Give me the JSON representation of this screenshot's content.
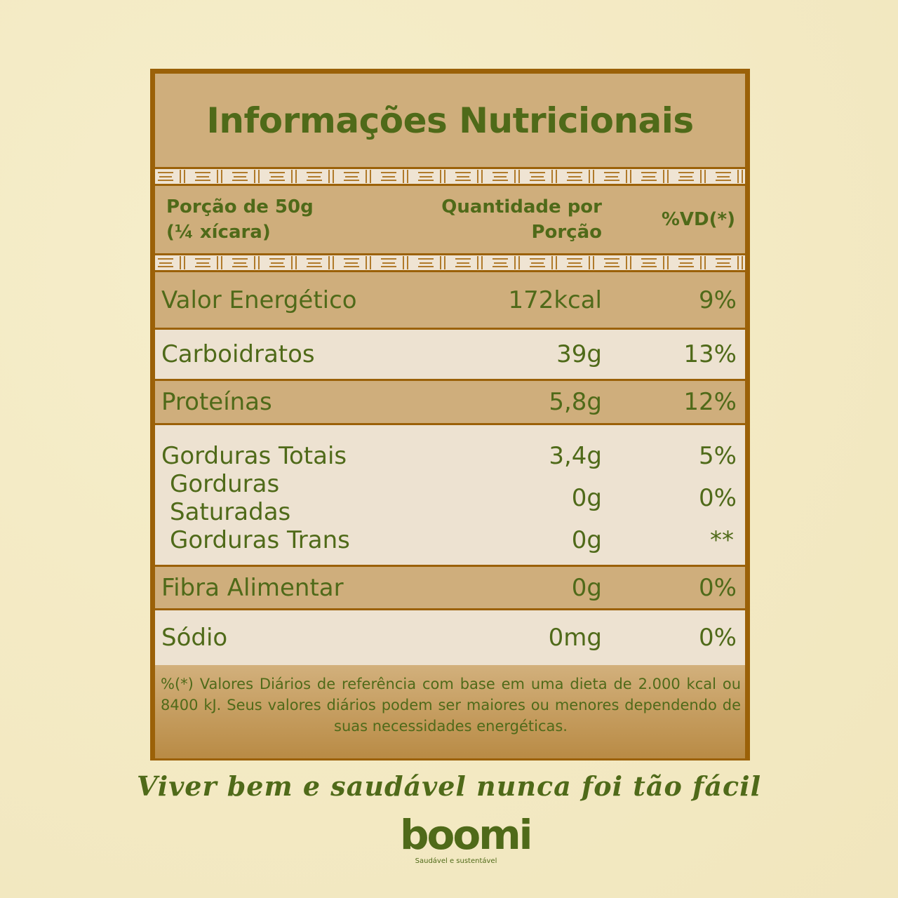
{
  "title": "Informações Nutricionais",
  "header": {
    "portion_line1": "Porção de 50g",
    "portion_line2": "(¼ xícara)",
    "qty_line1": "Quantidade por",
    "qty_line2": "Porção",
    "vd": "%VD(*)"
  },
  "rows": [
    {
      "label": "Valor Energético",
      "qty": "172kcal",
      "vd": "9%"
    },
    {
      "label": "Carboidratos",
      "qty": "39g",
      "vd": "13%"
    },
    {
      "label": "Proteínas",
      "qty": "5,8g",
      "vd": "12%"
    },
    {
      "label": "Gorduras Totais",
      "qty": "3,4g",
      "vd": "5%"
    },
    {
      "label": "Gorduras Saturadas",
      "qty": "0g",
      "vd": "0%"
    },
    {
      "label": "Gorduras Trans",
      "qty": "0g",
      "vd": "**"
    },
    {
      "label": "Fibra Alimentar",
      "qty": "0g",
      "vd": "0%"
    },
    {
      "label": "Sódio",
      "qty": "0mg",
      "vd": "0%"
    }
  ],
  "footnote": "%(*) Valores Diários de referência com base em uma dieta de 2.000 kcal ou 8400 kJ. Seus valores diários podem ser maiores ou menores dependendo de suas necessidades energéticas.",
  "tagline": "Viver bem e saudável nunca foi tão fácil",
  "logo": {
    "name": "boomi",
    "slogan": "Saudável e sustentável"
  },
  "colors": {
    "text": "#4f6a19",
    "border": "#9b6108",
    "tan": "#cfae7c",
    "light": "#ede2d1",
    "background": "#f4ebc6"
  }
}
